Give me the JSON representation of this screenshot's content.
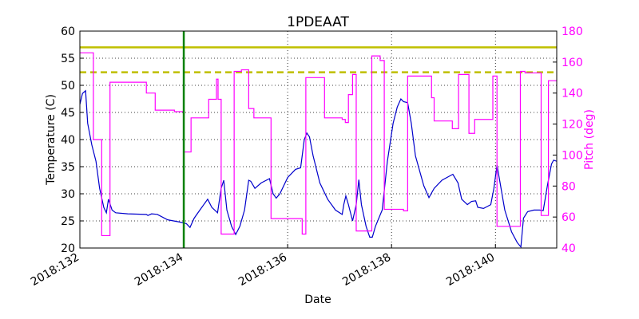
{
  "chart_data": {
    "type": "line",
    "title": "1PDEAAT",
    "xlabel": "Date",
    "ylabel": "Temperature (C)",
    "y2label": "Pitch (deg)",
    "y2color": "#ff00ff",
    "grid": true,
    "xlim": [
      132,
      141.18
    ],
    "xticks": [
      {
        "value": 132,
        "label": "2018:132"
      },
      {
        "value": 134,
        "label": "2018:134"
      },
      {
        "value": 136,
        "label": "2018:136"
      },
      {
        "value": 138,
        "label": "2018:138"
      },
      {
        "value": 140,
        "label": "2018:140"
      }
    ],
    "ylim": [
      20,
      60
    ],
    "yticks": [
      20,
      25,
      30,
      35,
      40,
      45,
      50,
      55,
      60
    ],
    "y2lim": [
      40,
      180
    ],
    "y2ticks": [
      40,
      60,
      80,
      100,
      120,
      140,
      160,
      180
    ],
    "hlines": [
      {
        "y": 57,
        "color": "#bfbf00",
        "style": "solid"
      },
      {
        "y": 52.4,
        "color": "#bfbf00",
        "style": "dashed"
      }
    ],
    "vlines": [
      {
        "x": 134,
        "color": "#008000"
      }
    ],
    "series": [
      {
        "name": "Temperature",
        "color": "#0000cc",
        "axis": "y",
        "x": [
          132,
          132.05,
          132.11,
          132.15,
          132.23,
          132.31,
          132.38,
          132.46,
          132.51,
          132.55,
          132.62,
          132.69,
          132.92,
          133.28,
          133.31,
          133.38,
          133.49,
          133.69,
          133.92,
          134.05,
          134.12,
          134.2,
          134.31,
          134.46,
          134.54,
          134.65,
          134.72,
          134.77,
          134.83,
          134.92,
          135,
          135.08,
          135.17,
          135.25,
          135.29,
          135.37,
          135.49,
          135.65,
          135.72,
          135.78,
          135.85,
          136,
          136.15,
          136.25,
          136.32,
          136.37,
          136.42,
          136.49,
          136.62,
          136.77,
          136.92,
          137.05,
          137.08,
          137.12,
          137.17,
          137.25,
          137.32,
          137.37,
          137.42,
          137.51,
          137.58,
          137.63,
          137.69,
          137.82,
          137.92,
          138.03,
          138.11,
          138.18,
          138.23,
          138.31,
          138.38,
          138.46,
          138.62,
          138.72,
          138.82,
          138.97,
          139.18,
          139.28,
          139.35,
          139.46,
          139.54,
          139.62,
          139.66,
          139.77,
          139.91,
          139.97,
          140.03,
          140.09,
          140.18,
          140.31,
          140.42,
          140.49,
          140.54,
          140.62,
          140.74,
          140.85,
          140.92,
          141,
          141.08,
          141.12,
          141.18
        ],
        "values": [
          46.5,
          48.5,
          49,
          43,
          39,
          36,
          31,
          27.5,
          26.5,
          29,
          27,
          26.5,
          26.3,
          26.2,
          26,
          26.3,
          26.2,
          25.2,
          24.8,
          24.5,
          23.8,
          25.5,
          27,
          29,
          27.5,
          26.5,
          31,
          32.5,
          27,
          24,
          22.5,
          24,
          27,
          32.5,
          32.3,
          31,
          32,
          32.8,
          30,
          29.2,
          30,
          33,
          34.5,
          34.8,
          40,
          41.2,
          40.5,
          37,
          32,
          29,
          27,
          26.2,
          28,
          29.6,
          28,
          25,
          28,
          32.6,
          28,
          24,
          22,
          22,
          24,
          27,
          36,
          43,
          46,
          47.5,
          47,
          46.8,
          43,
          37,
          31.5,
          29.3,
          31,
          32.5,
          33.6,
          32,
          29,
          28,
          28.6,
          28.7,
          27.5,
          27.3,
          28,
          31,
          35.3,
          32,
          27,
          23,
          21,
          20.2,
          25.5,
          26.7,
          27,
          27,
          26.9,
          31.5,
          35.5,
          36.2,
          36
        ]
      },
      {
        "name": "Pitch",
        "color": "#ff00ff",
        "axis": "y2",
        "x": [
          132,
          132.26,
          132.26,
          132.42,
          132.42,
          132.58,
          132.58,
          133.28,
          133.28,
          133.45,
          133.45,
          133.82,
          133.82,
          134,
          134,
          134.14,
          134.14,
          134.48,
          134.48,
          134.63,
          134.63,
          134.66,
          134.66,
          134.72,
          134.72,
          134.97,
          134.97,
          135.11,
          135.11,
          135.25,
          135.25,
          135.35,
          135.35,
          135.68,
          135.68,
          136.28,
          136.28,
          136.35,
          136.35,
          136.71,
          136.71,
          137.05,
          137.05,
          137.11,
          137.11,
          137.17,
          137.17,
          137.25,
          137.25,
          137.32,
          137.32,
          137.62,
          137.62,
          137.78,
          137.78,
          137.86,
          137.86,
          138.23,
          138.23,
          138.31,
          138.31,
          138.77,
          138.77,
          138.82,
          138.82,
          139.17,
          139.17,
          139.29,
          139.29,
          139.49,
          139.49,
          139.6,
          139.6,
          139.95,
          139.95,
          140.03,
          140.03,
          140.48,
          140.48,
          140.57,
          140.57,
          140.88,
          140.88,
          141.02,
          141.02,
          141.18
        ],
        "values": [
          166,
          166,
          110,
          110,
          48,
          48,
          147,
          147,
          140,
          140,
          129,
          129,
          128,
          128,
          102,
          102,
          124,
          124,
          136,
          136,
          149,
          149,
          136,
          136,
          49,
          49,
          154,
          154,
          155,
          155,
          130,
          130,
          124,
          124,
          59,
          59,
          49,
          49,
          150,
          150,
          124,
          124,
          123,
          123,
          121,
          121,
          139,
          139,
          152,
          152,
          51,
          51,
          164,
          164,
          161,
          161,
          65,
          65,
          64,
          64,
          151,
          151,
          137,
          137,
          122,
          122,
          117,
          117,
          152,
          152,
          114,
          114,
          123,
          123,
          151,
          151,
          54,
          54,
          154,
          154,
          153,
          153,
          61,
          61,
          148,
          148
        ]
      }
    ]
  }
}
